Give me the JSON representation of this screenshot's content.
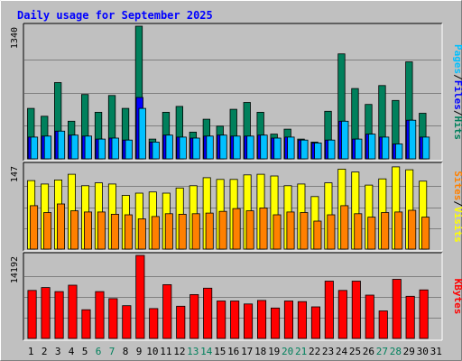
{
  "chart_data": {
    "type": "bar",
    "title": "Daily usage for September 2025",
    "days": [
      "1",
      "2",
      "3",
      "4",
      "5",
      "6",
      "7",
      "8",
      "9",
      "10",
      "11",
      "12",
      "13",
      "14",
      "15",
      "16",
      "17",
      "18",
      "19",
      "20",
      "21",
      "22",
      "23",
      "24",
      "25",
      "26",
      "27",
      "28",
      "29",
      "30",
      "31"
    ],
    "weekend_days": [
      "6",
      "7",
      "13",
      "14",
      "20",
      "21",
      "27",
      "28"
    ],
    "panels": [
      {
        "name": "hits",
        "ymax_label": "1340",
        "ylim": [
          0,
          1340
        ],
        "series": [
          {
            "name": "Hits",
            "color": "#00805c",
            "values": [
              510,
              430,
              770,
              380,
              650,
              470,
              640,
              510,
              1340,
              200,
              470,
              530,
              270,
              400,
              330,
              500,
              570,
              470,
              250,
              300,
              200,
              170,
              480,
              1060,
              710,
              550,
              740,
              590,
              980,
              460,
              null
            ]
          },
          {
            "name": "Files",
            "color": "#0000ff",
            "values": [
              220,
              230,
              280,
              240,
              230,
              200,
              210,
              190,
              620,
              170,
              240,
              220,
              210,
              230,
              240,
              230,
              230,
              240,
              210,
              220,
              190,
              160,
              190,
              380,
              200,
              250,
              220,
              150,
              390,
              220,
              null
            ]
          },
          {
            "name": "Pages",
            "color": "#00c0ff",
            "values": [
              220,
              230,
              280,
              240,
              230,
              200,
              210,
              190,
              510,
              170,
              240,
              220,
              210,
              230,
              240,
              230,
              230,
              240,
              210,
              220,
              190,
              160,
              190,
              380,
              200,
              250,
              220,
              150,
              390,
              220,
              null
            ]
          }
        ],
        "legend": [
          "Pages",
          "Files",
          "Hits"
        ],
        "legend_colors": [
          "#00c0ff",
          "#0000ff",
          "#00805c"
        ]
      },
      {
        "name": "visits",
        "ymax_label": "147",
        "ylim": [
          0,
          147
        ],
        "series": [
          {
            "name": "Visits",
            "color": "#ffff00",
            "values": [
              120,
              114,
              121,
              131,
              111,
              116,
              114,
              94,
              98,
              100,
              98,
              107,
              111,
              125,
              122,
              122,
              130,
              131,
              128,
              111,
              114,
              92,
              116,
              140,
              135,
              112,
              123,
              144,
              139,
              119,
              null
            ]
          },
          {
            "name": "Sites",
            "color": "#ff8000",
            "values": [
              76,
              64,
              79,
              67,
              65,
              65,
              61,
              60,
              53,
              57,
              62,
              61,
              62,
              63,
              66,
              71,
              67,
              72,
              60,
              65,
              64,
              49,
              60,
              76,
              62,
              56,
              64,
              65,
              68,
              56,
              null
            ]
          }
        ],
        "legend": [
          "Sites",
          "Visits"
        ],
        "legend_colors": [
          "#ff8000",
          "#ffff00"
        ]
      },
      {
        "name": "kbytes",
        "ymax_label": "14192",
        "ylim": [
          0,
          14192
        ],
        "series": [
          {
            "name": "KBytes",
            "color": "#ff0000",
            "values": [
              8200,
              8700,
              8000,
              9100,
              4900,
              8000,
              6800,
              5600,
              14192,
              5100,
              9200,
              5500,
              7500,
              8600,
              6400,
              6400,
              5900,
              6500,
              5200,
              6400,
              6300,
              5400,
              9800,
              8200,
              9800,
              7400,
              4700,
              10100,
              7200,
              8300,
              null
            ]
          }
        ],
        "legend": [
          "KBytes"
        ],
        "legend_colors": [
          "#ff0000"
        ]
      }
    ]
  },
  "colors": {
    "background": "#c0c0c0",
    "title": "#0000ff",
    "grid": "#808080",
    "weekday_label": "#000000",
    "weekend_label": "#00805c",
    "separator": "#000000"
  }
}
